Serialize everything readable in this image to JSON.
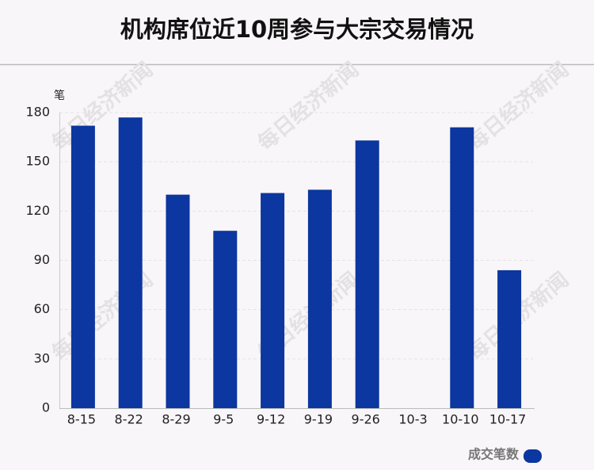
{
  "chart_data": {
    "type": "bar",
    "title": "机构席位近10周参与大宗交易情况",
    "y_unit": "笔",
    "categories": [
      "8-15",
      "8-22",
      "8-29",
      "9-5",
      "9-12",
      "9-19",
      "9-26",
      "10-3",
      "10-10",
      "10-17"
    ],
    "series": [
      {
        "name": "成交笔数",
        "color": "#0c36a0",
        "values": [
          172,
          177,
          130,
          108,
          131,
          133,
          163,
          0,
          171,
          84
        ]
      }
    ],
    "ylim": [
      0,
      180
    ],
    "yticks": [
      0,
      30,
      60,
      90,
      120,
      150,
      180
    ],
    "grid": true,
    "legend": "bottom-right",
    "watermark": "每日经济新闻"
  }
}
